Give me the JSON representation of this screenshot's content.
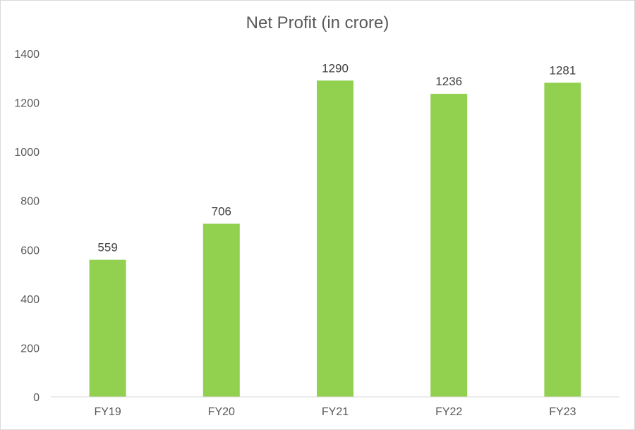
{
  "chart_data": {
    "type": "bar",
    "title": "Net Profit (in crore)",
    "xlabel": "",
    "ylabel": "",
    "categories": [
      "FY19",
      "FY20",
      "FY21",
      "FY22",
      "FY23"
    ],
    "values": [
      559,
      706,
      1290,
      1236,
      1281
    ],
    "data_labels": [
      "559",
      "706",
      "1290",
      "1236",
      "1281"
    ],
    "ylim": [
      0,
      1400
    ],
    "yticks": [
      0,
      200,
      400,
      600,
      800,
      1000,
      1200,
      1400
    ],
    "ytick_labels": [
      "0",
      "200",
      "400",
      "600",
      "800",
      "1000",
      "1200",
      "1400"
    ],
    "grid": false,
    "legend": "none",
    "bar_color": "#92d050"
  }
}
